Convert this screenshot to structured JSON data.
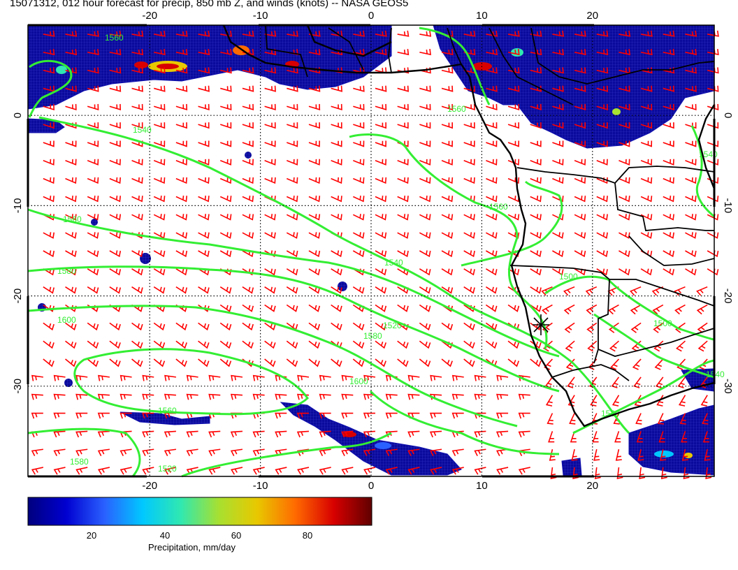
{
  "title": "15071312, 012 hour forecast for precip, 850 mb Z, and winds (knots) -- NASA GEOS5",
  "map": {
    "lon_range": [
      -31,
      31
    ],
    "lat_range": [
      -40,
      10
    ],
    "lon_ticks": [
      "-20",
      "-10",
      "0",
      "10",
      "20"
    ],
    "lat_ticks": [
      "0",
      "-10",
      "-20",
      "-30"
    ],
    "gridlines": "dotted",
    "station_marker": "star-icon"
  },
  "contours": {
    "field": "850 mb geopotential height",
    "color": "#33ee33",
    "labels": [
      "1560",
      "1540",
      "1540",
      "1520",
      "1560",
      "1580",
      "1600",
      "1580",
      "1560",
      "1600",
      "1580",
      "1560",
      "1520",
      "1560",
      "1500",
      "1500",
      "1540",
      "1520",
      "1540"
    ]
  },
  "winds": {
    "units": "knots",
    "barb_color": "#ff0000"
  },
  "colorbar": {
    "label": "Precipitation, mm/day",
    "ticks": [
      "20",
      "40",
      "60",
      "80"
    ],
    "colors": [
      "#00007f",
      "#0000d0",
      "#2a60ff",
      "#00c8ff",
      "#30e8b0",
      "#a8e030",
      "#e8c800",
      "#ff6a00",
      "#d80000",
      "#600000"
    ]
  }
}
